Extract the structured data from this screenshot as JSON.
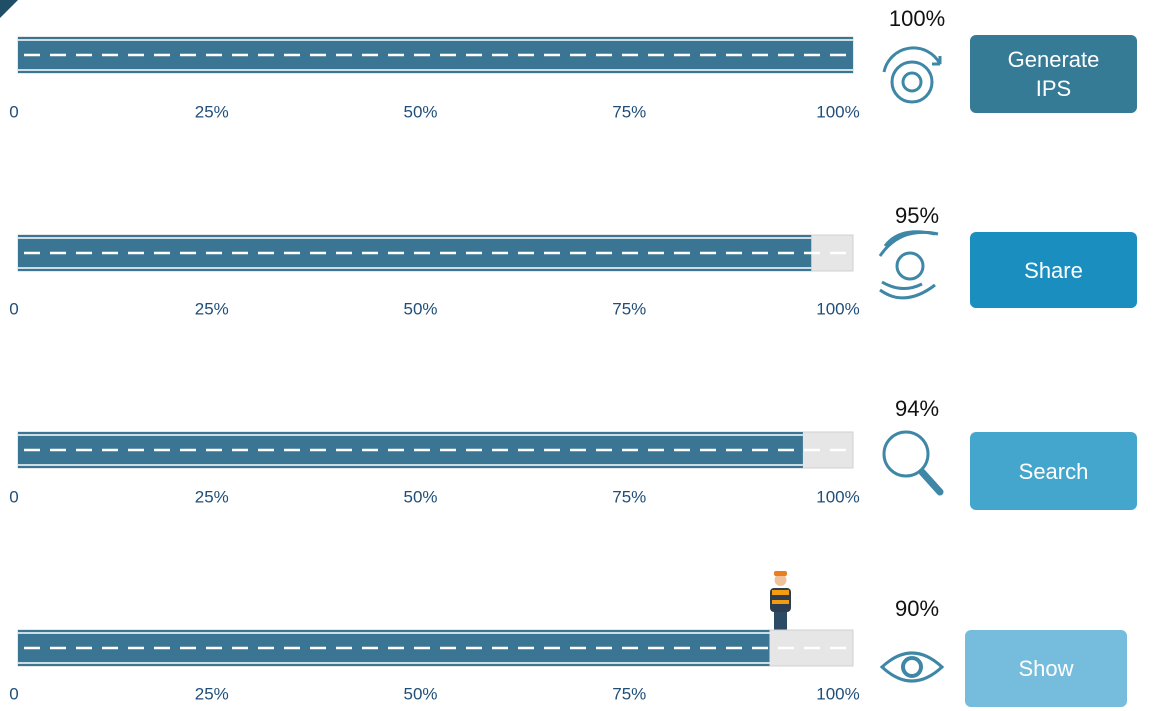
{
  "chart_data": [
    {
      "type": "progress",
      "values": [
        100
      ],
      "value_labels": [
        "100%"
      ],
      "xlim": [
        0,
        100
      ],
      "xticks": [
        0,
        {
          "value": 25,
          "label": "25%"
        },
        {
          "value": 50,
          "label": "50%"
        },
        {
          "value": 75,
          "label": "75%"
        },
        {
          "value": 100,
          "label": "100%"
        }
      ],
      "color": "#3a7693",
      "button": "Generate IPS",
      "button_color": "#357b96"
    },
    {
      "type": "progress",
      "values": [
        95
      ],
      "value_labels": [
        "95%"
      ],
      "xlim": [
        0,
        100
      ],
      "xticks": [
        0,
        {
          "value": 25,
          "label": "25%"
        },
        {
          "value": 50,
          "label": "50%"
        },
        {
          "value": 75,
          "label": "75%"
        },
        {
          "value": 100,
          "label": "100%"
        }
      ],
      "color": "#3a7693",
      "button": "Share",
      "button_color": "#1a8fbf"
    },
    {
      "type": "progress",
      "values": [
        94
      ],
      "value_labels": [
        "94%"
      ],
      "xlim": [
        0,
        100
      ],
      "xticks": [
        0,
        {
          "value": 25,
          "label": "25%"
        },
        {
          "value": 50,
          "label": "50%"
        },
        {
          "value": 75,
          "label": "75%"
        },
        {
          "value": 100,
          "label": "100%"
        }
      ],
      "color": "#3a7693",
      "button": "Search",
      "button_color": "#45a6cd"
    },
    {
      "type": "progress",
      "values": [
        90
      ],
      "value_labels": [
        "90%"
      ],
      "xlim": [
        0,
        100
      ],
      "xticks": [
        0,
        {
          "value": 25,
          "label": "25%"
        },
        {
          "value": 50,
          "label": "50%"
        },
        {
          "value": 75,
          "label": "75%"
        },
        {
          "value": 100,
          "label": "100%"
        }
      ],
      "color": "#3a7693",
      "button": "Show",
      "button_color": "#76bcdc"
    }
  ]
}
